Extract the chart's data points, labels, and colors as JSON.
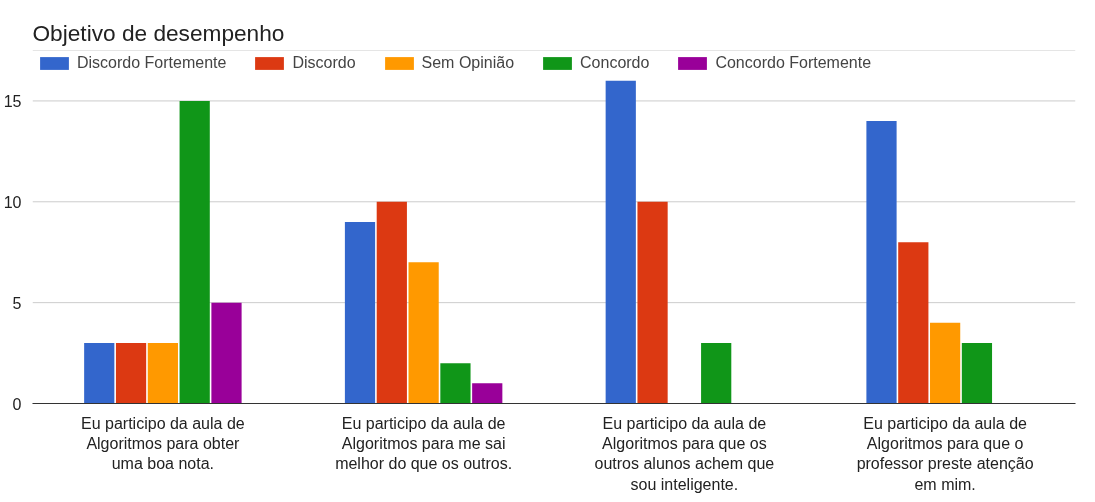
{
  "chart_data": {
    "type": "bar",
    "title": "Objetivo de desempenho",
    "categories": [
      "Eu participo da aula de Algoritmos para obter uma boa nota.",
      "Eu participo da aula de Algoritmos para me sai melhor do que os outros.",
      "Eu participo da aula de Algoritmos para que os outros alunos achem que sou inteligente.",
      "Eu participo da aula de Algoritmos para que o professor preste atenção em mim."
    ],
    "series": [
      {
        "name": "Discordo Fortemente",
        "color": "#3366cc",
        "values": [
          3,
          9,
          16,
          14
        ]
      },
      {
        "name": "Discordo",
        "color": "#dc3912",
        "values": [
          3,
          10,
          10,
          8
        ]
      },
      {
        "name": "Sem Opinião",
        "color": "#ff9900",
        "values": [
          3,
          7,
          0,
          4
        ]
      },
      {
        "name": "Concordo",
        "color": "#109618",
        "values": [
          15,
          2,
          3,
          3
        ]
      },
      {
        "name": "Concordo Fortemente",
        "color": "#990099",
        "values": [
          5,
          1,
          0,
          0
        ]
      }
    ],
    "ylim": [
      0,
      17.5
    ],
    "yticks": [
      0,
      5,
      10,
      15,
      {
        "value": 17.5,
        "label": null
      }
    ],
    "grid": "y",
    "legend": "top"
  }
}
